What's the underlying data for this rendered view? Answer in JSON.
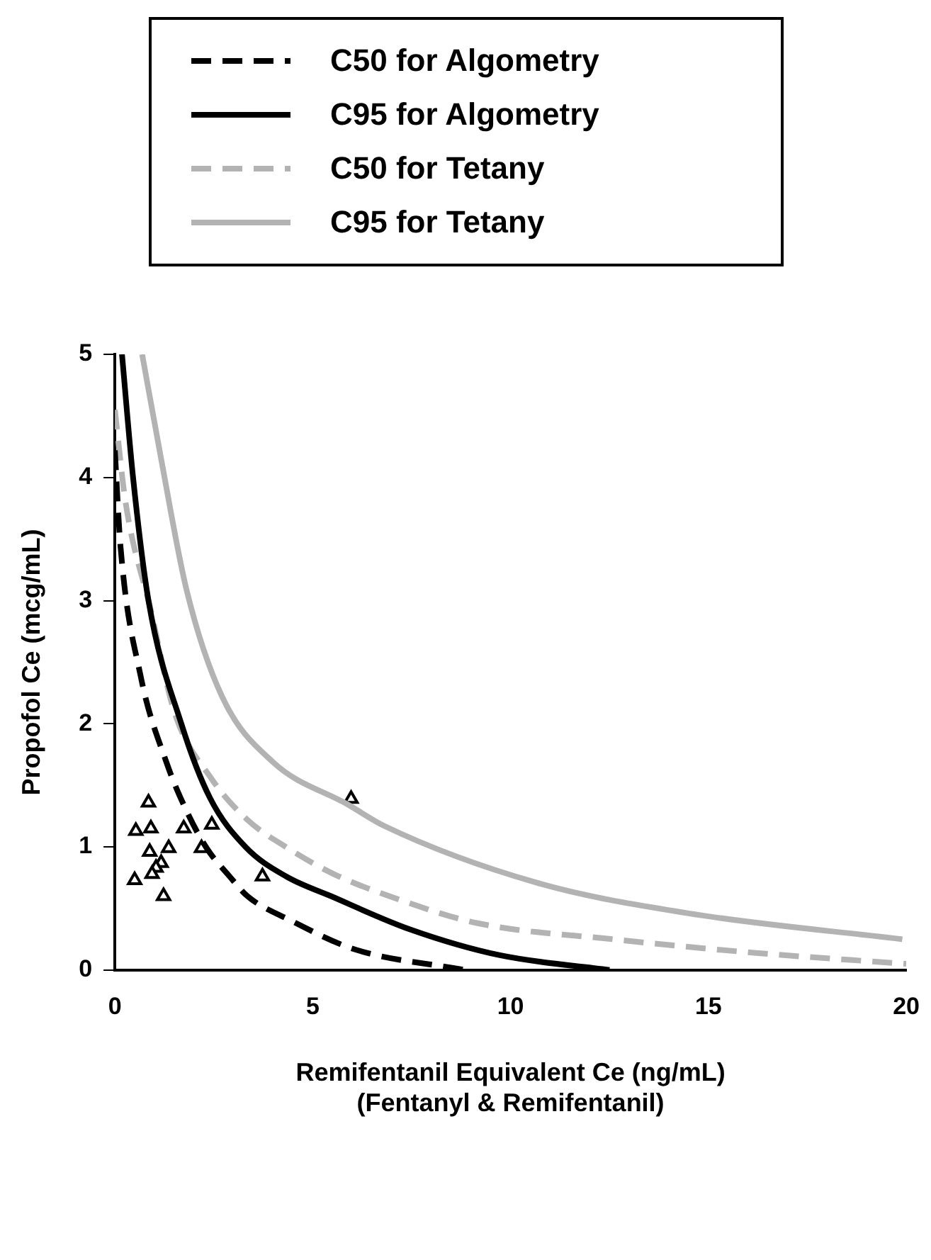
{
  "chart_data": {
    "type": "line",
    "xlabel": "Remifentanil Equivalent Ce (ng/mL)\n(Fentanyl & Remifentanil)",
    "ylabel": "Propofol Ce (mcg/mL)",
    "xlim": [
      0,
      20
    ],
    "xticks": [
      0,
      5,
      10,
      15,
      20
    ],
    "ylim": [
      0,
      5
    ],
    "yticks": [
      0,
      1,
      2,
      3,
      4,
      5
    ],
    "grid": false,
    "legend": "top",
    "marker": "none",
    "series": [
      {
        "name": "C50 for Algometry",
        "color": "#000000",
        "line_style": "dashed",
        "x": [
          0,
          0.14,
          0.65,
          1.3,
          1.8,
          2.32,
          2.9,
          3.35,
          4.46,
          6.04,
          8.85
        ],
        "values": [
          4.22,
          3.45,
          2.39,
          1.69,
          1.3,
          0.99,
          0.76,
          0.6,
          0.4,
          0.17,
          0
        ]
      },
      {
        "name": "C95 for Algometry",
        "color": "#000000",
        "line_style": "solid",
        "x": [
          0.18,
          0.46,
          0.85,
          1.68,
          2.4,
          3.3,
          4.33,
          5.46,
          7.46,
          9.73,
          12.5
        ],
        "values": [
          5,
          4,
          3,
          2,
          1.4,
          1,
          0.76,
          0.6,
          0.33,
          0.12,
          0
        ]
      },
      {
        "name": "C50 for Tetany",
        "color": "#b3b3b3",
        "line_style": "dashed",
        "x": [
          0,
          0.27,
          0.91,
          1.5,
          2.45,
          3.35,
          4.37,
          5.53,
          7.2,
          9.17,
          12.58,
          16.15,
          20
        ],
        "values": [
          4.55,
          3.8,
          2.92,
          2.1,
          1.55,
          1.22,
          0.99,
          0.78,
          0.57,
          0.38,
          0.25,
          0.14,
          0.05
        ]
      },
      {
        "name": "C95 for Tetany",
        "color": "#b3b3b3",
        "line_style": "solid",
        "x": [
          0.69,
          1.17,
          1.81,
          2.71,
          3.99,
          5.91,
          6.81,
          10.65,
          14.5,
          19.9
        ],
        "values": [
          5,
          4.15,
          3.09,
          2.22,
          1.69,
          1.34,
          1.17,
          0.71,
          0.46,
          0.25
        ]
      },
      {
        "type": "scatter",
        "marker": "triangle",
        "color": "#000000",
        "x": [
          0.85,
          0.53,
          0.91,
          1.74,
          2.45,
          1.36,
          0.88,
          2.19,
          1.17,
          1.04,
          0.5,
          0.94,
          1.23,
          3.73,
          5.97
        ],
        "values": [
          1.36,
          1.13,
          1.15,
          1.15,
          1.18,
          0.99,
          0.96,
          0.99,
          0.87,
          0.83,
          0.73,
          0.78,
          0.6,
          0.76,
          1.39
        ]
      }
    ]
  }
}
